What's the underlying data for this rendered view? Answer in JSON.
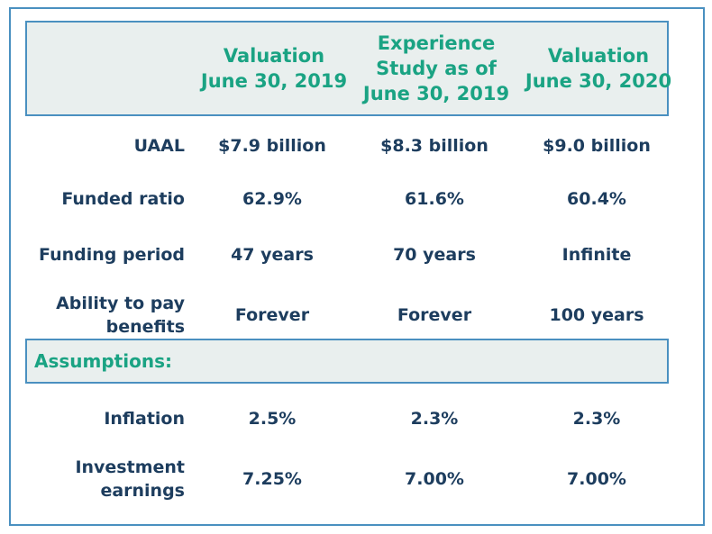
{
  "columns": [
    {
      "lines": [
        "Valuation",
        "June 30, 2019"
      ]
    },
    {
      "lines": [
        "Experience",
        "Study as of",
        "June 30, 2019"
      ]
    },
    {
      "lines": [
        "Valuation",
        "June 30, 2020"
      ]
    }
  ],
  "rows": [
    {
      "label_lines": [
        "UAAL"
      ],
      "values": [
        "$7.9 billion",
        "$8.3 billion",
        "$9.0 billion"
      ]
    },
    {
      "label_lines": [
        "Funded ratio"
      ],
      "values": [
        "62.9%",
        "61.6%",
        "60.4%"
      ]
    },
    {
      "label_lines": [
        "Funding period"
      ],
      "values": [
        "47 years",
        "70 years",
        "Infinite"
      ]
    },
    {
      "label_lines": [
        "Ability to pay",
        "benefits"
      ],
      "values": [
        "Forever",
        "Forever",
        "100 years"
      ]
    }
  ],
  "section": {
    "label": "Assumptions:"
  },
  "assumption_rows": [
    {
      "label_lines": [
        "Inflation"
      ],
      "values": [
        "2.5%",
        "2.3%",
        "2.3%"
      ]
    },
    {
      "label_lines": [
        "Investment",
        "earnings"
      ],
      "values": [
        "7.25%",
        "7.00%",
        "7.00%"
      ]
    }
  ]
}
